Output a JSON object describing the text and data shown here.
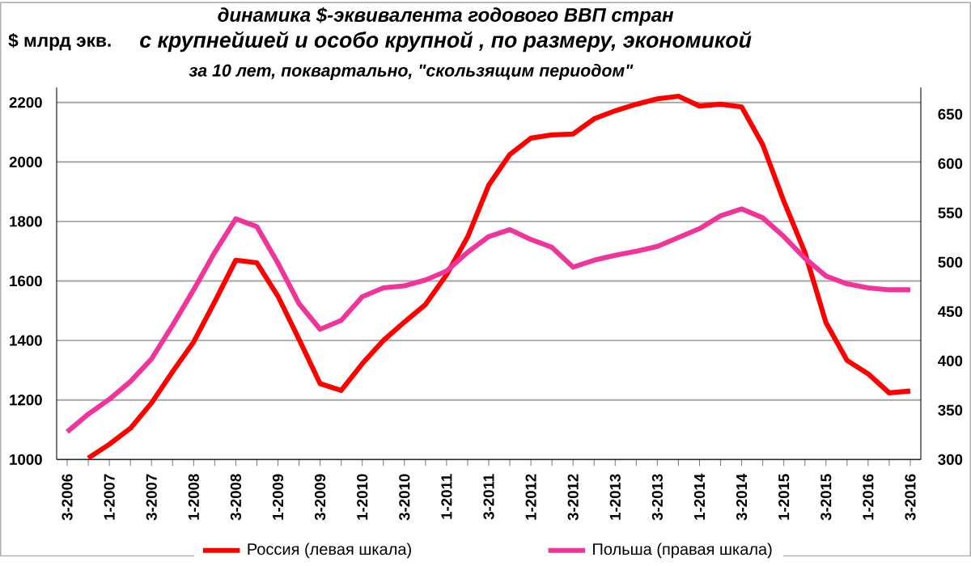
{
  "chart_data": {
    "type": "line",
    "title": "динамика $-эквивалента  годового  ВВП стран",
    "subtitle": "с крупнейшей и особо крупной , по размеру,  экономикой",
    "annotations": [
      "за 10 лет, поквартально, \"скользящим периодом\""
    ],
    "ylabel": "$ млрд экв.",
    "categories": [
      "3-2006",
      null,
      "1-2007",
      null,
      "3-2007",
      null,
      "1-2008",
      null,
      "3-2008",
      null,
      "1-2009",
      null,
      "3-2009",
      null,
      "1-2010",
      null,
      "3-2010",
      null,
      "1-2011",
      null,
      "3-2011",
      null,
      "1-2012",
      null,
      "3-2012",
      null,
      "1-2013",
      null,
      "3-2013",
      null,
      "1-2014",
      null,
      "3-2014",
      null,
      "1-2015",
      null,
      "3-2015",
      null,
      "1-2016",
      null,
      "3-2016"
    ],
    "series": [
      {
        "name": "Россия (левая шкала)",
        "color": "#ff0000",
        "values": [
          null,
          1005,
          1051,
          1105,
          1190,
          1295,
          1395,
          1530,
          1670,
          1661,
          1549,
          1404,
          1255,
          1232,
          1322,
          1400,
          1462,
          1521,
          1621,
          1748,
          1922,
          2025,
          2080,
          2091,
          2094,
          2145,
          2172,
          2194,
          2212,
          2221,
          2188,
          2194,
          2185,
          2058,
          1868,
          1696,
          1460,
          1333,
          1288,
          1224,
          1230
        ]
      },
      {
        "name": "Польша (правая шкала)",
        "color": "#f0359a",
        "axis": "y2",
        "values": [
          328,
          346,
          361,
          379,
          402,
          436,
          472,
          510,
          544,
          536,
          499,
          458,
          432,
          441,
          465,
          474,
          476,
          482,
          491,
          510,
          526,
          533,
          523,
          515,
          495,
          502,
          507,
          511,
          516,
          525,
          534,
          547,
          554,
          545,
          526,
          504,
          486,
          478,
          474,
          472,
          472
        ]
      }
    ],
    "ylim": [
      1000,
      2250
    ],
    "yticks": [
      1000,
      1200,
      1400,
      1600,
      1800,
      2000,
      2200
    ],
    "y2lim": [
      300,
      677
    ],
    "y2ticks": [
      300,
      350,
      400,
      450,
      500,
      550,
      600,
      650
    ],
    "grid": "y",
    "legend": "bottom",
    "marker": "none",
    "line_style": "solid"
  }
}
